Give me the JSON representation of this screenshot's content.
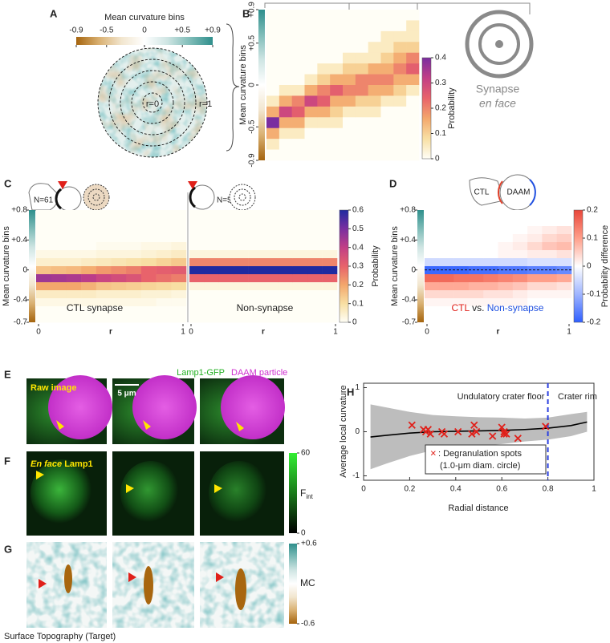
{
  "panel_a": {
    "label": "A",
    "colorbar_title": "Mean curvature bins",
    "lim": [
      -0.9,
      0.9
    ],
    "ticks": [
      -0.9,
      -0.5,
      0,
      {
        "value": 0.5,
        "label": "+0.5"
      },
      {
        "value": 0.9,
        "label": "+0.9"
      }
    ],
    "colormap": [
      "#a5640e",
      "#d9b071",
      "#f2e6cf",
      "#ffffff",
      "#cfe5e3",
      "#7fbcb8",
      "#2f8f8c"
    ],
    "center_label": "r=0",
    "edge_label": "r=1"
  },
  "panel_b": {
    "label": "B",
    "y_label": "Mean curvature bins",
    "ylim": [
      -0.9,
      0.9
    ],
    "yticks": [
      -0.9,
      -0.5,
      0,
      {
        "value": 0.5,
        "label": "+0.5"
      },
      {
        "value": 0.9,
        "label": "+0.9"
      }
    ],
    "cells": [
      [
        0,
        0,
        0,
        0,
        0,
        0,
        0,
        0,
        0.05,
        0.15,
        0.4,
        0.15,
        0.05,
        0
      ],
      [
        0,
        0,
        0,
        0,
        0,
        0,
        0,
        0.05,
        0.15,
        0.3,
        0.15,
        0.05,
        0,
        0
      ],
      [
        0,
        0,
        0,
        0,
        0,
        0,
        0,
        0.05,
        0.2,
        0.25,
        0.15,
        0.05,
        0,
        0
      ],
      [
        0,
        0,
        0,
        0,
        0,
        0,
        0.05,
        0.15,
        0.3,
        0.15,
        0.05,
        0,
        0,
        0
      ],
      [
        0,
        0,
        0,
        0,
        0,
        0.05,
        0.1,
        0.2,
        0.25,
        0.15,
        0.05,
        0,
        0,
        0
      ],
      [
        0,
        0,
        0,
        0,
        0,
        0.05,
        0.15,
        0.25,
        0.15,
        0.1,
        0.05,
        0,
        0,
        0
      ],
      [
        0,
        0,
        0,
        0,
        0.05,
        0.1,
        0.15,
        0.2,
        0.15,
        0.05,
        0,
        0,
        0,
        0
      ],
      [
        0,
        0,
        0,
        0,
        0.05,
        0.1,
        0.2,
        0.2,
        0.1,
        0.05,
        0,
        0,
        0,
        0
      ],
      [
        0,
        0,
        0,
        0.05,
        0.05,
        0.15,
        0.2,
        0.15,
        0.1,
        0.05,
        0,
        0,
        0,
        0
      ],
      [
        0,
        0,
        0.05,
        0.05,
        0.1,
        0.15,
        0.2,
        0.15,
        0.05,
        0,
        0,
        0,
        0,
        0
      ],
      [
        0,
        0,
        0.05,
        0.1,
        0.15,
        0.2,
        0.15,
        0.1,
        0.05,
        0,
        0,
        0,
        0,
        0
      ],
      [
        0,
        0.05,
        0.05,
        0.1,
        0.2,
        0.25,
        0.15,
        0.05,
        0,
        0,
        0,
        0,
        0,
        0
      ]
    ],
    "colorbar_label": "Probability",
    "clim": [
      0,
      0.4
    ],
    "cticks": [
      0,
      0.1,
      0.2,
      0.3,
      0.4
    ],
    "colormap": [
      "#fffef6",
      "#f8dfa3",
      "#f3a76c",
      "#e8636b",
      "#c23f86",
      "#7a2ea0"
    ],
    "synapse_label": "Synapse",
    "synapse_sublabel": "en face"
  },
  "panel_c": {
    "label": "C",
    "ctl_n": "N=61",
    "non_n": "N=56",
    "y_label": "Mean curvature bins",
    "ylim": [
      -0.7,
      0.8
    ],
    "yticks": [
      -0.7,
      -0.4,
      0,
      {
        "value": 0.4,
        "label": "+0.4"
      },
      {
        "value": 0.8,
        "label": "+0.8"
      }
    ],
    "x_label": "r",
    "xticks": [
      0,
      1
    ],
    "ctl_title": "CTL synapse",
    "non_title": "Non-synapse",
    "ctl_cells": [
      [
        0,
        0,
        0,
        0,
        0,
        0.02,
        0.05,
        0.15,
        0.45,
        0.2,
        0.06,
        0.02,
        0,
        0
      ],
      [
        0,
        0,
        0,
        0,
        0,
        0.02,
        0.05,
        0.16,
        0.44,
        0.2,
        0.06,
        0.02,
        0,
        0
      ],
      [
        0,
        0,
        0,
        0,
        0,
        0.02,
        0.05,
        0.17,
        0.43,
        0.2,
        0.06,
        0.02,
        0,
        0
      ],
      [
        0,
        0,
        0,
        0,
        0,
        0.02,
        0.06,
        0.19,
        0.41,
        0.18,
        0.06,
        0.02,
        0,
        0
      ],
      [
        0,
        0,
        0,
        0,
        0.01,
        0.03,
        0.07,
        0.22,
        0.38,
        0.15,
        0.05,
        0.02,
        0,
        0
      ],
      [
        0,
        0,
        0,
        0,
        0.01,
        0.03,
        0.08,
        0.24,
        0.36,
        0.14,
        0.05,
        0.02,
        0,
        0
      ],
      [
        0,
        0,
        0,
        0,
        0.01,
        0.03,
        0.09,
        0.26,
        0.34,
        0.13,
        0.05,
        0.02,
        0,
        0
      ],
      [
        0,
        0,
        0,
        0,
        0.02,
        0.04,
        0.1,
        0.3,
        0.3,
        0.12,
        0.04,
        0.02,
        0,
        0
      ],
      [
        0,
        0,
        0,
        0,
        0.02,
        0.05,
        0.12,
        0.31,
        0.28,
        0.11,
        0.04,
        0.01,
        0,
        0
      ],
      [
        0,
        0,
        0,
        0,
        0.03,
        0.06,
        0.14,
        0.32,
        0.26,
        0.1,
        0.03,
        0.01,
        0,
        0
      ]
    ],
    "non_cells": [
      [
        0,
        0,
        0,
        0,
        0,
        0.03,
        0.25,
        0.6,
        0.3,
        0.03,
        0,
        0,
        0,
        0
      ],
      [
        0,
        0,
        0,
        0,
        0,
        0.03,
        0.25,
        0.6,
        0.3,
        0.03,
        0,
        0,
        0,
        0
      ],
      [
        0,
        0,
        0,
        0,
        0,
        0.03,
        0.25,
        0.6,
        0.3,
        0.03,
        0,
        0,
        0,
        0
      ],
      [
        0,
        0,
        0,
        0,
        0,
        0.03,
        0.25,
        0.6,
        0.3,
        0.03,
        0,
        0,
        0,
        0
      ],
      [
        0,
        0,
        0,
        0,
        0,
        0.03,
        0.25,
        0.6,
        0.3,
        0.03,
        0,
        0,
        0,
        0
      ],
      [
        0,
        0,
        0,
        0,
        0,
        0.03,
        0.25,
        0.6,
        0.3,
        0.03,
        0,
        0,
        0,
        0
      ],
      [
        0,
        0,
        0,
        0,
        0,
        0.03,
        0.25,
        0.6,
        0.3,
        0.03,
        0,
        0,
        0,
        0
      ],
      [
        0,
        0,
        0,
        0,
        0,
        0.03,
        0.25,
        0.6,
        0.3,
        0.03,
        0,
        0,
        0,
        0
      ],
      [
        0,
        0,
        0,
        0,
        0,
        0.03,
        0.25,
        0.6,
        0.3,
        0.03,
        0,
        0,
        0,
        0
      ],
      [
        0,
        0,
        0,
        0,
        0,
        0.03,
        0.25,
        0.6,
        0.3,
        0.03,
        0,
        0,
        0,
        0
      ]
    ],
    "colorbar_label": "Probability",
    "clim": [
      0,
      0.6
    ],
    "cticks": [
      0,
      0.1,
      0.2,
      0.3,
      0.4,
      0.5,
      0.6
    ],
    "colormap": [
      "#fffef6",
      "#f8dfa3",
      "#f3a76c",
      "#e8636b",
      "#c23f86",
      "#7a2ea0",
      "#1f2aa0"
    ]
  },
  "panel_d": {
    "label": "D",
    "icon_ctl": "CTL",
    "icon_daam": "DAAM",
    "y_label": "Mean curvature bins",
    "ylim": [
      -0.7,
      0.8
    ],
    "yticks": [
      -0.7,
      -0.4,
      0,
      {
        "value": 0.4,
        "label": "+0.4"
      },
      {
        "value": 0.8,
        "label": "+0.8"
      }
    ],
    "x_label": "r",
    "xticks": [
      0,
      1
    ],
    "cells": [
      [
        0,
        0,
        0,
        0,
        0,
        0,
        -0.05,
        -0.19,
        0.16,
        0.09,
        0.04,
        0.01,
        0,
        0
      ],
      [
        0,
        0,
        0,
        0,
        0,
        0,
        -0.05,
        -0.19,
        0.16,
        0.09,
        0.04,
        0.01,
        0,
        0
      ],
      [
        0,
        0,
        0,
        0,
        0,
        0,
        -0.05,
        -0.19,
        0.15,
        0.09,
        0.04,
        0.01,
        0,
        0
      ],
      [
        0,
        0,
        0,
        0,
        0,
        0,
        -0.05,
        -0.18,
        0.15,
        0.08,
        0.04,
        0.01,
        0,
        0
      ],
      [
        0,
        0,
        0,
        0,
        0,
        0,
        -0.05,
        -0.18,
        0.14,
        0.08,
        0.03,
        0.01,
        0,
        0
      ],
      [
        0,
        0,
        0,
        0,
        0.01,
        0.01,
        -0.05,
        -0.17,
        0.13,
        0.07,
        0.03,
        0.01,
        0,
        0
      ],
      [
        0,
        0,
        0,
        0.01,
        0.02,
        0.01,
        -0.05,
        -0.17,
        0.12,
        0.06,
        0.02,
        0.01,
        0,
        0
      ],
      [
        0,
        0,
        0.01,
        0.02,
        0.04,
        0.02,
        -0.04,
        -0.16,
        0.1,
        0.04,
        0.01,
        0,
        0,
        0
      ],
      [
        0,
        0,
        0.02,
        0.04,
        0.06,
        0.02,
        -0.04,
        -0.16,
        0.1,
        0.04,
        0.01,
        0,
        0,
        0
      ],
      [
        0,
        0,
        0.03,
        0.05,
        0.07,
        0.03,
        -0.04,
        -0.15,
        0.09,
        0.03,
        0.01,
        0,
        0,
        0
      ]
    ],
    "colorbar_label": "Probability difference",
    "clim": [
      -0.2,
      0.2
    ],
    "cticks": [
      -0.2,
      -0.1,
      0,
      0.1,
      0.2
    ],
    "colormap": [
      "#2f5fff",
      "#9fb5ff",
      "#ffffff",
      "#ff9f8a",
      "#e8463a"
    ],
    "legend_ctl": "CTL",
    "legend_vs": "vs.",
    "legend_non": "Non-synapse"
  },
  "panel_e": {
    "label": "E",
    "channel_1": "Lamp1-GFP",
    "channel_2": "DAAM particle",
    "row_label": "Raw image",
    "scale_bar": "5 μm"
  },
  "panel_f": {
    "label": "F",
    "row_label_em": "En face",
    "row_label": "Lamp1",
    "colorbar_label": "F",
    "colorbar_sub": "int",
    "clim": [
      0,
      60
    ],
    "cticks": [
      0,
      60
    ]
  },
  "panel_g": {
    "label": "G",
    "colorbar_label": "MC",
    "clim": [
      -0.6,
      0.6
    ],
    "cticks": [
      -0.6,
      {
        "value": 0.6,
        "label": "+0.6"
      }
    ],
    "caption": "Surface Topography (Target)"
  },
  "panel_h": {
    "label": "H",
    "y_label": "Average local curvature",
    "x_label": "Radial distance",
    "xlim": [
      0,
      1
    ],
    "ylim": [
      -1.1,
      1.1
    ],
    "xticks": [
      0,
      0.2,
      0.4,
      0.6,
      0.8,
      1
    ],
    "yticks": [
      -1,
      0,
      1
    ],
    "x": [
      0.03,
      0.1,
      0.2,
      0.3,
      0.4,
      0.5,
      0.6,
      0.7,
      0.8,
      0.9,
      0.97
    ],
    "mean": [
      -0.12,
      -0.08,
      -0.03,
      0,
      0.01,
      0.02,
      0.03,
      0.05,
      0.08,
      0.14,
      0.22
    ],
    "upper": [
      0.62,
      0.55,
      0.45,
      0.38,
      0.35,
      0.33,
      0.32,
      0.3,
      0.32,
      0.4,
      0.45
    ],
    "lower": [
      -0.85,
      -0.72,
      -0.55,
      -0.42,
      -0.35,
      -0.32,
      -0.28,
      -0.22,
      -0.18,
      -0.1,
      0
    ],
    "points_x": [
      0.21,
      0.26,
      0.27,
      0.28,
      0.29,
      0.34,
      0.35,
      0.41,
      0.47,
      0.48,
      0.49,
      0.56,
      0.6,
      0.61,
      0.61,
      0.62,
      0.67,
      0.79
    ],
    "points_y": [
      0.15,
      0.05,
      0,
      0.05,
      -0.05,
      0,
      -0.05,
      0,
      -0.05,
      0.15,
      0,
      -0.1,
      0.1,
      -0.05,
      0,
      -0.05,
      -0.15,
      0.12
    ],
    "rim_x": 0.8,
    "region_floor": "Undulatory crater floor",
    "region_rim": "Crater rim",
    "legend_marker": "×",
    "legend_label": ": Degranulation spots",
    "legend_note": "(1.0-μm diam. circle)"
  }
}
